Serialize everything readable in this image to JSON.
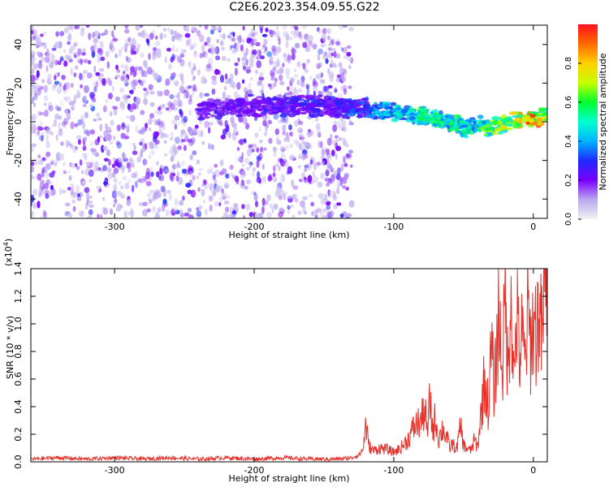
{
  "title": "C2E6.2023.354.09.55.G22",
  "chart_data": [
    {
      "type": "heatmap",
      "xlabel": "Height of straight line (km)",
      "ylabel": "Frequency (Hz)",
      "xlim": [
        -360,
        10
      ],
      "ylim": [
        -50,
        50
      ],
      "x_ticks": [
        -300,
        -200,
        -100,
        0
      ],
      "y_ticks": [
        -40,
        -20,
        0,
        20,
        40
      ],
      "colorbar": {
        "label": "Normalized spectral amplitude",
        "range": [
          0.0,
          1.0
        ],
        "ticks": [
          "0.0",
          "0.2",
          "0.4",
          "0.6",
          "0.8"
        ],
        "colormap": [
          "#f2f2f2",
          "#b9a8f0",
          "#7a00ff",
          "#1f2aff",
          "#00b4ff",
          "#00ffd0",
          "#00ff30",
          "#c8ff00",
          "#ffd000",
          "#ff6a00",
          "#ff1020"
        ]
      },
      "ridge": [
        {
          "x": -240,
          "y": 6,
          "amp": 0.25
        },
        {
          "x": -200,
          "y": 8,
          "amp": 0.25
        },
        {
          "x": -180,
          "y": 8,
          "amp": 0.3
        },
        {
          "x": -150,
          "y": 8,
          "amp": 0.3
        },
        {
          "x": -120,
          "y": 7,
          "amp": 0.35
        },
        {
          "x": -110,
          "y": 6,
          "amp": 0.45
        },
        {
          "x": -100,
          "y": 5,
          "amp": 0.55
        },
        {
          "x": -80,
          "y": 3,
          "amp": 0.6
        },
        {
          "x": -60,
          "y": 0,
          "amp": 0.6
        },
        {
          "x": -50,
          "y": -3,
          "amp": 0.55
        },
        {
          "x": -40,
          "y": -2,
          "amp": 0.6
        },
        {
          "x": -30,
          "y": -3,
          "amp": 0.7
        },
        {
          "x": -20,
          "y": -1,
          "amp": 0.75
        },
        {
          "x": -10,
          "y": 1,
          "amp": 0.85
        },
        {
          "x": 0,
          "y": 1.5,
          "amp": 1.0
        },
        {
          "x": 10,
          "y": 3,
          "amp": 0.7
        }
      ]
    },
    {
      "type": "line",
      "xlabel": "Height of straight line (km)",
      "ylabel": "SNR (10 * v/v)",
      "y_multiplier": "(x10",
      "y_multiplier_exp": "4",
      "y_multiplier_close": ")",
      "xlim": [
        -360,
        10
      ],
      "ylim": [
        0,
        1.4
      ],
      "x_ticks": [
        -300,
        -200,
        -100,
        0
      ],
      "y_ticks": [
        "0.0",
        "0.2",
        "0.4",
        "0.6",
        "0.8",
        "1.0",
        "1.2",
        "1.4"
      ],
      "series": [
        {
          "color": "#e8302a",
          "x": [
            -360,
            -340,
            -320,
            -300,
            -280,
            -260,
            -240,
            -220,
            -200,
            -180,
            -160,
            -140,
            -130,
            -125,
            -122,
            -120,
            -118,
            -115,
            -110,
            -105,
            -100,
            -95,
            -90,
            -85,
            -80,
            -78,
            -76,
            -74,
            -72,
            -70,
            -68,
            -65,
            -62,
            -60,
            -58,
            -55,
            -52,
            -50,
            -48,
            -45,
            -42,
            -40,
            -38,
            -35,
            -32,
            -30,
            -28,
            -25,
            -22,
            -20,
            -18,
            -16,
            -14,
            -12,
            -10,
            -8,
            -6,
            -4,
            -2,
            0,
            2,
            4,
            6,
            8,
            10
          ],
          "values": [
            0.02,
            0.03,
            0.02,
            0.03,
            0.02,
            0.03,
            0.02,
            0.03,
            0.02,
            0.03,
            0.02,
            0.02,
            0.03,
            0.05,
            0.09,
            0.28,
            0.12,
            0.08,
            0.1,
            0.09,
            0.07,
            0.1,
            0.16,
            0.26,
            0.3,
            0.4,
            0.2,
            0.45,
            0.22,
            0.33,
            0.16,
            0.24,
            0.18,
            0.1,
            0.13,
            0.09,
            0.26,
            0.12,
            0.1,
            0.08,
            0.16,
            0.1,
            0.3,
            0.6,
            0.38,
            0.85,
            0.5,
            1.05,
            0.7,
            1.2,
            0.6,
            1.4,
            0.55,
            1.1,
            0.75,
            0.9,
            0.7,
            1.05,
            0.85,
            1.0,
            0.95,
            1.1,
            0.9,
            1.2,
            1.4
          ]
        }
      ]
    }
  ]
}
